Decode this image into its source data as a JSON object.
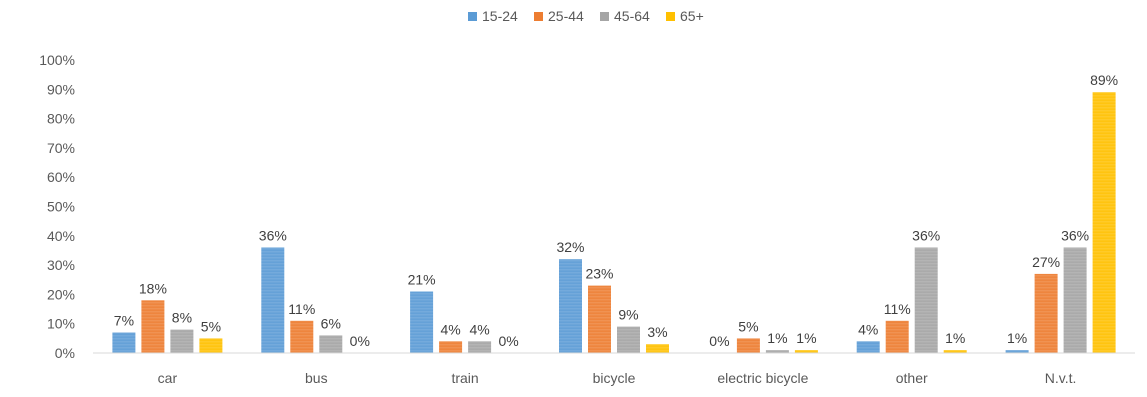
{
  "chart_data": {
    "type": "bar",
    "title": "",
    "xlabel": "",
    "ylabel": "",
    "categories": [
      "car",
      "bus",
      "train",
      "bicycle",
      "electric bicycle",
      "other",
      "N.v.t."
    ],
    "series": [
      {
        "name": "15-24",
        "color": "#5B9BD5",
        "values": [
          7,
          36,
          21,
          32,
          0,
          4,
          1
        ],
        "labels": [
          "7%",
          "36%",
          "21%",
          "32%",
          "0%",
          "4%",
          "1%"
        ]
      },
      {
        "name": "25-44",
        "color": "#ED7D31",
        "values": [
          18,
          11,
          4,
          23,
          5,
          11,
          27
        ],
        "labels": [
          "18%",
          "11%",
          "4%",
          "23%",
          "5%",
          "11%",
          "27%"
        ]
      },
      {
        "name": "45-64",
        "color": "#A5A5A5",
        "values": [
          8,
          6,
          4,
          9,
          1,
          36,
          36
        ],
        "labels": [
          "8%",
          "6%",
          "4%",
          "9%",
          "1%",
          "36%",
          "36%"
        ]
      },
      {
        "name": "65+",
        "color": "#FFC000",
        "values": [
          5,
          0,
          0,
          3,
          1,
          1,
          89
        ],
        "labels": [
          "5%",
          "0%",
          "0%",
          "3%",
          "1%",
          "1%",
          "89%"
        ]
      }
    ],
    "ylim": [
      0,
      100
    ],
    "yticks": [
      "0%",
      "10%",
      "20%",
      "30%",
      "40%",
      "50%",
      "60%",
      "70%",
      "80%",
      "90%",
      "100%"
    ],
    "grid": false,
    "legend_position": "top-center"
  }
}
